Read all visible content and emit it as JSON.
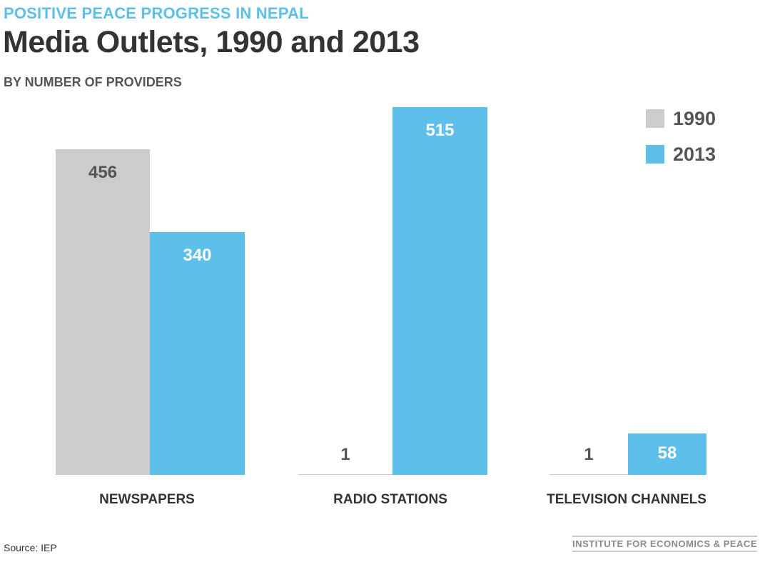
{
  "header": {
    "kicker": "POSITIVE PEACE PROGRESS IN NEPAL",
    "title": "Media Outlets, 1990 and 2013",
    "subtitle": "BY NUMBER OF PROVIDERS"
  },
  "footer": {
    "source": "Source: IEP",
    "brand": "INSTITUTE FOR ECONOMICS & PEACE"
  },
  "colors": {
    "series_1990": "#cccccc",
    "series_2013": "#5ec0ea",
    "kicker": "#5ec0ea",
    "label_dark": "#555555",
    "label_light": "#ffffff"
  },
  "chart_data": {
    "type": "bar",
    "title": "Media Outlets, 1990 and 2013",
    "subtitle": "BY NUMBER OF PROVIDERS",
    "categories": [
      "NEWSPAPERS",
      "RADIO STATIONS",
      "TELEVISION CHANNELS"
    ],
    "series": [
      {
        "name": "1990",
        "values": [
          456,
          1,
          1
        ]
      },
      {
        "name": "2013",
        "values": [
          340,
          515,
          58
        ]
      }
    ],
    "value_labels": [
      [
        "456",
        "1",
        "1"
      ],
      [
        "340",
        "515",
        "58"
      ]
    ],
    "xlabel": "",
    "ylabel": "",
    "ylim": [
      0,
      515
    ],
    "grid": false,
    "legend_position": "top-right"
  }
}
